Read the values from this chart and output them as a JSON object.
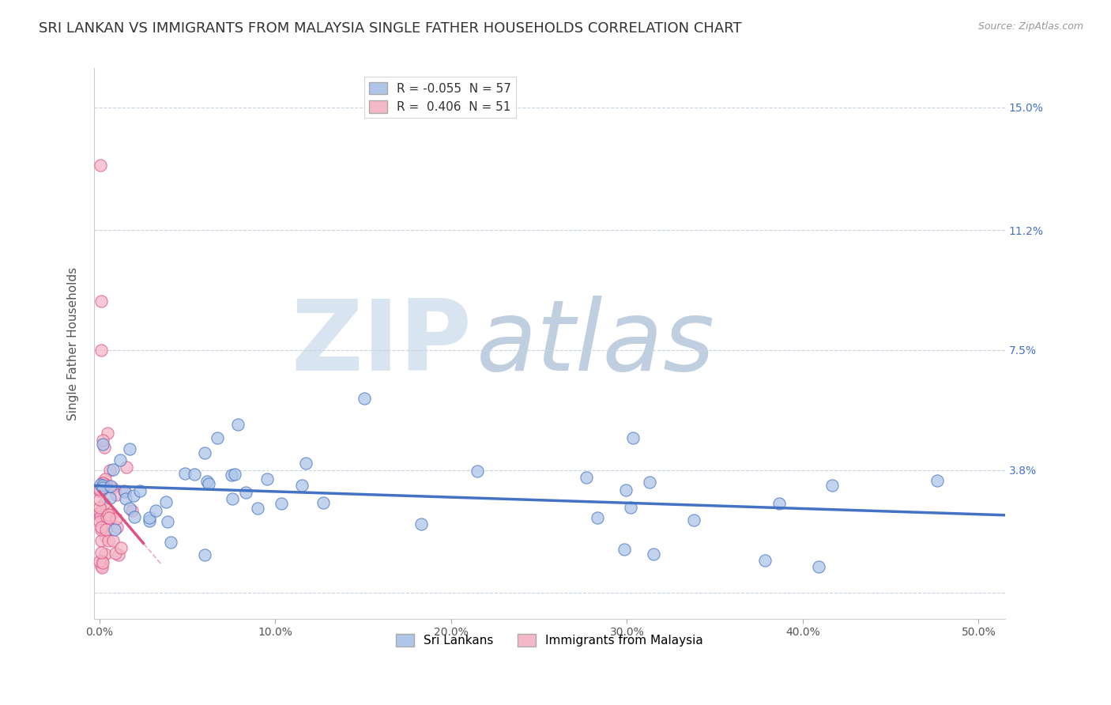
{
  "title": "SRI LANKAN VS IMMIGRANTS FROM MALAYSIA SINGLE FATHER HOUSEHOLDS CORRELATION CHART",
  "source": "Source: ZipAtlas.com",
  "ylabel": "Single Father Households",
  "x_ticks": [
    0.0,
    10.0,
    20.0,
    30.0,
    40.0,
    50.0
  ],
  "y_ticks": [
    0.0,
    3.8,
    7.5,
    11.2,
    15.0
  ],
  "y_tick_labels": [
    "",
    "3.8%",
    "7.5%",
    "11.2%",
    "15.0%"
  ],
  "xlim": [
    -0.3,
    51.5
  ],
  "ylim": [
    -0.8,
    16.2
  ],
  "blue_r": -0.055,
  "blue_n": 57,
  "pink_r": 0.406,
  "pink_n": 51,
  "blue_color": "#4472c4",
  "blue_face_color": "#aec6e8",
  "pink_color": "#e05080",
  "pink_face_color": "#f4b8c8",
  "background_color": "#ffffff",
  "grid_color": "#c8d4e0",
  "title_fontsize": 13,
  "axis_label_fontsize": 11,
  "tick_fontsize": 10,
  "right_tick_color": "#4472c4",
  "legend_r_color": "#4472c4",
  "watermark_zip_color": "#d8e4f0",
  "watermark_atlas_color": "#c0cfe0"
}
